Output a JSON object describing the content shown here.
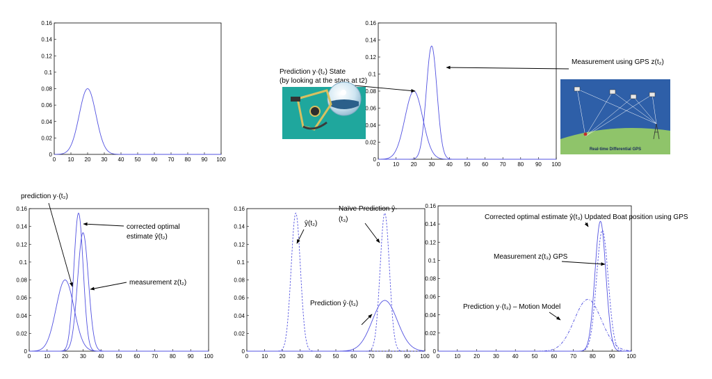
{
  "chart_data": [
    {
      "type": "line",
      "xlim": [
        0,
        100
      ],
      "ylim": [
        0,
        0.16
      ],
      "xticks": [
        0,
        10,
        20,
        30,
        40,
        50,
        60,
        70,
        80,
        90,
        100
      ],
      "yticks": [
        0,
        0.02,
        0.04,
        0.06,
        0.08,
        0.1,
        0.12,
        0.14,
        0.16
      ],
      "xtick_labels": [
        "0",
        "10",
        "20",
        "30",
        "40",
        "50",
        "60",
        "70",
        "80",
        "90",
        "100"
      ],
      "ytick_labels": [
        "0",
        "0.02",
        "0.04",
        "0.06",
        "0.08",
        "0.1",
        "0.12",
        "0.14",
        "0.16"
      ],
      "series": [
        {
          "mean": 20,
          "sigma": 5,
          "peak": 0.08,
          "style": "solid"
        }
      ],
      "annotations": []
    },
    {
      "type": "line",
      "xlim": [
        0,
        100
      ],
      "ylim": [
        0,
        0.16
      ],
      "xticks": [
        0,
        10,
        20,
        30,
        40,
        50,
        60,
        70,
        80,
        90,
        100
      ],
      "yticks": [
        0,
        0.02,
        0.04,
        0.06,
        0.08,
        0.1,
        0.12,
        0.14,
        0.16
      ],
      "xtick_labels": [
        "0",
        "10",
        "20",
        "30",
        "40",
        "50",
        "60",
        "70",
        "80",
        "90",
        "100"
      ],
      "ytick_labels": [
        "0",
        "0.02",
        "0.04",
        "0.06",
        "0.08",
        "0.1",
        "0.12",
        "0.14",
        "0.16"
      ],
      "series": [
        {
          "mean": 20,
          "sigma": 5,
          "peak": 0.08,
          "style": "solid"
        },
        {
          "mean": 30,
          "sigma": 3,
          "peak": 0.133,
          "style": "solid"
        }
      ],
      "annotations": [
        {
          "lines": [
            "Prediction y·(t₂) State",
            " (by looking at the stars at t2)"
          ]
        },
        {
          "lines": [
            "Measurement using GPS z(t₂)"
          ]
        }
      ]
    },
    {
      "type": "line",
      "xlim": [
        0,
        100
      ],
      "ylim": [
        0,
        0.16
      ],
      "xticks": [
        0,
        10,
        20,
        30,
        40,
        50,
        60,
        70,
        80,
        90,
        100
      ],
      "yticks": [
        0,
        0.02,
        0.04,
        0.06,
        0.08,
        0.1,
        0.12,
        0.14,
        0.16
      ],
      "xtick_labels": [
        "0",
        "10",
        "20",
        "30",
        "40",
        "50",
        "60",
        "70",
        "80",
        "90",
        "100"
      ],
      "ytick_labels": [
        "0",
        "0.02",
        "0.04",
        "0.06",
        "0.08",
        "0.1",
        "0.12",
        "0.14",
        "0.16"
      ],
      "series": [
        {
          "mean": 20,
          "sigma": 5,
          "peak": 0.08,
          "style": "solid"
        },
        {
          "mean": 30,
          "sigma": 3,
          "peak": 0.133,
          "style": "solid"
        },
        {
          "mean": 27.5,
          "sigma": 2.6,
          "peak": 0.155,
          "style": "solid"
        }
      ],
      "annotations": [
        {
          "lines": [
            "prediction y·(t₂)"
          ]
        },
        {
          "lines": [
            "corrected optimal",
            "estimate ŷ(t₂)"
          ]
        },
        {
          "lines": [
            "measurement z(t₂)"
          ]
        }
      ]
    },
    {
      "type": "line",
      "xlim": [
        0,
        100
      ],
      "ylim": [
        0,
        0.16
      ],
      "xticks": [
        0,
        10,
        20,
        30,
        40,
        50,
        60,
        70,
        80,
        90,
        100
      ],
      "yticks": [
        0,
        0.02,
        0.04,
        0.06,
        0.08,
        0.1,
        0.12,
        0.14,
        0.16
      ],
      "xtick_labels": [
        "0",
        "10",
        "20",
        "30",
        "40",
        "50",
        "60",
        "70",
        "80",
        "90",
        "100"
      ],
      "ytick_labels": [
        "0",
        "0.02",
        "0.04",
        "0.06",
        "0.08",
        "0.1",
        "0.12",
        "0.14",
        "0.16"
      ],
      "series": [
        {
          "mean": 27.5,
          "sigma": 2.6,
          "peak": 0.155,
          "style": "dashed"
        },
        {
          "mean": 77.5,
          "sigma": 2.6,
          "peak": 0.155,
          "style": "dashed"
        },
        {
          "mean": 77.5,
          "sigma": 7,
          "peak": 0.057,
          "style": "solid"
        }
      ],
      "annotations": [
        {
          "lines": [
            "ŷ(t₂)"
          ]
        },
        {
          "lines": [
            "Naïve Prediction ŷ·",
            "(t₃)"
          ]
        },
        {
          "lines": [
            "Prediction ŷ·(t₃)"
          ]
        }
      ]
    },
    {
      "type": "line",
      "xlim": [
        0,
        100
      ],
      "ylim": [
        0,
        0.16
      ],
      "xticks": [
        0,
        10,
        20,
        30,
        40,
        50,
        60,
        70,
        80,
        90,
        100
      ],
      "yticks": [
        0,
        0.02,
        0.04,
        0.06,
        0.08,
        0.1,
        0.12,
        0.14,
        0.16
      ],
      "xtick_labels": [
        "0",
        "10",
        "20",
        "30",
        "40",
        "50",
        "60",
        "70",
        "80",
        "90",
        "100"
      ],
      "ytick_labels": [
        "0",
        "0.02",
        "0.04",
        "0.06",
        "0.08",
        "0.1",
        "0.12",
        "0.14",
        "0.16"
      ],
      "series": [
        {
          "mean": 77.5,
          "sigma": 7,
          "peak": 0.057,
          "style": "dashdot"
        },
        {
          "mean": 85,
          "sigma": 3,
          "peak": 0.133,
          "style": "dashed"
        },
        {
          "mean": 84,
          "sigma": 2.8,
          "peak": 0.143,
          "style": "solid"
        }
      ],
      "annotations": [
        {
          "lines": [
            "Corrected optimal estimate ŷ(t₃) Updated Boat position using  GPS"
          ]
        },
        {
          "lines": [
            "Measurement  z(t₃) GPS"
          ]
        },
        {
          "lines": [
            "Prediction y·(t₃) – Motion Model"
          ]
        }
      ]
    }
  ],
  "images": {
    "sextant": {
      "icon": "sextant-illustration-icon"
    },
    "gps": {
      "icon": "gps-satellites-illustration-icon",
      "caption": "Real-time Differential GPS"
    }
  },
  "colors": {
    "curve": "#5050e0",
    "sky": "#2e5fa8",
    "ground": "#8fc46a",
    "sextant_bg": "#1fa79d"
  }
}
